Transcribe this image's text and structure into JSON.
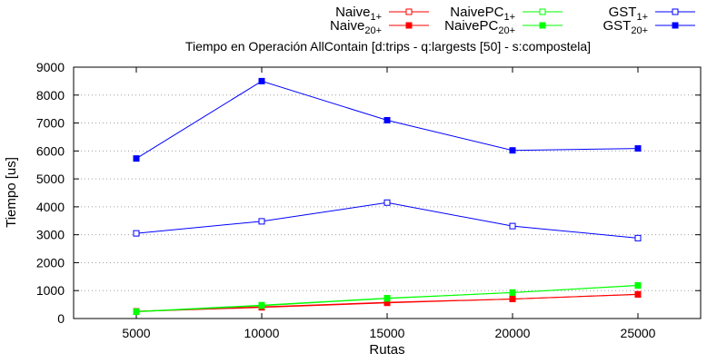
{
  "chart_data": {
    "type": "line",
    "title": "Tiempo en Operación AllContain [d:trips - q:largests [50] - s:compostela]",
    "xlabel": "Rutas",
    "ylabel": "Tiempo [us]",
    "x": [
      5000,
      10000,
      15000,
      20000,
      25000
    ],
    "x_ticks": [
      "5000",
      "10000",
      "15000",
      "20000",
      "25000"
    ],
    "xlim": [
      2500,
      27500
    ],
    "ylim": [
      0,
      9000
    ],
    "y_ticks": [
      "0",
      "1000",
      "2000",
      "3000",
      "4000",
      "5000",
      "6000",
      "7000",
      "8000",
      "9000"
    ],
    "grid": true,
    "legend_position": "top-right",
    "series": [
      {
        "name": "Naive",
        "subscript": "1+",
        "color": "#ff0000",
        "marker": "open-square",
        "values": [
          250,
          400,
          560,
          700,
          870
        ]
      },
      {
        "name": "Naive",
        "subscript": "20+",
        "color": "#ff0000",
        "marker": "filled-square",
        "values": [
          260,
          420,
          580,
          700,
          860
        ]
      },
      {
        "name": "NaivePC",
        "subscript": "1+",
        "color": "#00ff00",
        "marker": "open-square",
        "values": [
          240,
          460,
          720,
          930,
          1180
        ]
      },
      {
        "name": "NaivePC",
        "subscript": "20+",
        "color": "#00ff00",
        "marker": "filled-square",
        "values": [
          250,
          480,
          730,
          930,
          1190
        ]
      },
      {
        "name": "GST",
        "subscript": "1+",
        "color": "#0000ff",
        "marker": "open-square",
        "values": [
          3050,
          3480,
          4150,
          3310,
          2880
        ]
      },
      {
        "name": "GST",
        "subscript": "20+",
        "color": "#0000ff",
        "marker": "filled-square",
        "values": [
          5730,
          8500,
          7100,
          6020,
          6090
        ]
      }
    ]
  }
}
